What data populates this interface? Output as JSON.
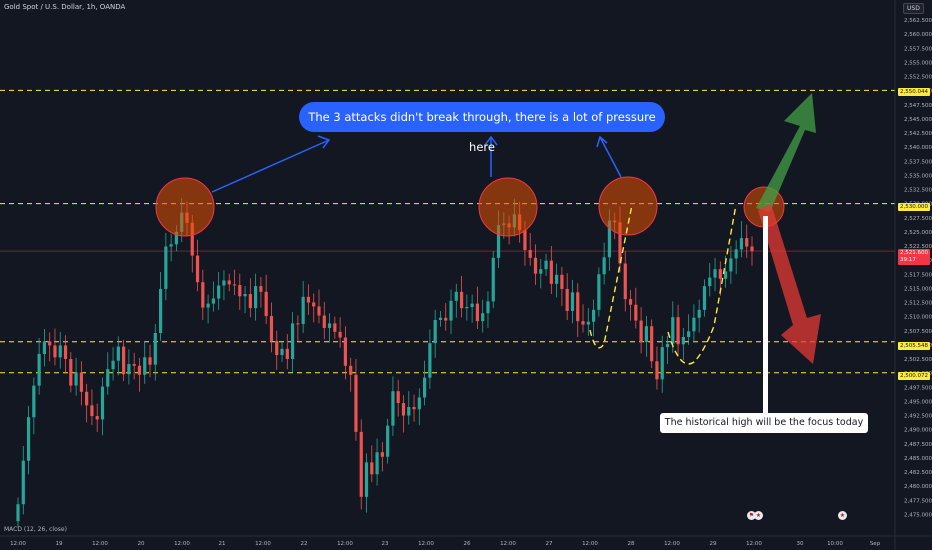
{
  "header": {
    "symbol": "Gold Spot / U.S. Dollar, 1h, OANDA",
    "currency": "USD"
  },
  "indicator": {
    "label": "MACD (12, 26, close)"
  },
  "annotations": {
    "top_note": "The 3 attacks didn't break through, there is a lot of pressure here",
    "bottom_note": "The historical high will be the focus today"
  },
  "price_tags": {
    "level_2550": "2,550.044",
    "level_2530": "2,530.000",
    "current_price": "2,521.600",
    "countdown": "39:17",
    "level_2505": "2,505.548",
    "level_2500": "2,500.072"
  },
  "colors": {
    "background": "#131722",
    "up": "#26a69a",
    "down": "#ef5350",
    "level_line": "#ffeb3b",
    "note": "#2962ff",
    "up_arrow": "#43a047",
    "down_arrow": "#e53935"
  },
  "chart_data": {
    "type": "candlestick",
    "title": "Gold Spot / U.S. Dollar, 1h, OANDA",
    "x_tick_labels": [
      "12:00",
      "19",
      "12:00",
      "20",
      "12:00",
      "21",
      "12:00",
      "22",
      "12:00",
      "23",
      "12:00",
      "26",
      "12:00",
      "27",
      "12:00",
      "28",
      "12:00",
      "29",
      "12:00",
      "30",
      "10:00",
      "Sep"
    ],
    "y_tick_labels": [
      "2,562.500",
      "2,560.000",
      "2,557.500",
      "2,555.000",
      "2,552.500",
      "2,550.000",
      "2,547.500",
      "2,545.000",
      "2,542.500",
      "2,540.000",
      "2,537.500",
      "2,535.000",
      "2,532.500",
      "2,530.000",
      "2,527.500",
      "2,525.000",
      "2,522.500",
      "2,520.000",
      "2,517.500",
      "2,515.000",
      "2,512.500",
      "2,510.000",
      "2,507.500",
      "2,505.000",
      "2,502.500",
      "2,500.000",
      "2,497.500",
      "2,495.000",
      "2,492.500",
      "2,490.000",
      "2,487.500",
      "2,485.000",
      "2,482.500",
      "2,480.000",
      "2,477.500",
      "2,475.000"
    ],
    "ylim": [
      2475,
      2563
    ],
    "horizontal_levels": [
      2550.044,
      2530.0,
      2505.548,
      2500.072
    ],
    "current_price": 2521.6,
    "candle_count": 140,
    "closes": [
      2476.8,
      2484.5,
      2492.2,
      2497.8,
      2503.4,
      2505.6,
      2504.9,
      2502.8,
      2504.9,
      2502.5,
      2497.8,
      2500.1,
      2496.7,
      2494.3,
      2492.4,
      2491.8,
      2497.6,
      2500.7,
      2502.2,
      2504.7,
      2499.8,
      2501.6,
      2501.3,
      2499.7,
      2502.8,
      2501.5,
      2507.1,
      2514.9,
      2522.4,
      2522.8,
      2525.0,
      2528.4,
      2526.6,
      2520.8,
      2516.1,
      2511.6,
      2512.3,
      2513.2,
      2515.5,
      2516.4,
      2515.7,
      2515.6,
      2513.6,
      2514.0,
      2511.5,
      2515.4,
      2514.4,
      2510.1,
      2505.7,
      2503.2,
      2504.3,
      2502.5,
      2508.8,
      2508.7,
      2513.5,
      2512.5,
      2511.8,
      2510.2,
      2508.0,
      2508.8,
      2507.3,
      2506.3,
      2501.3,
      2499.7,
      2489.6,
      2478.1,
      2484.2,
      2482.1,
      2486.0,
      2485.2,
      2490.7,
      2496.8,
      2494.7,
      2492.5,
      2494.0,
      2493.6,
      2495.7,
      2499.2,
      2505.3,
      2509.4,
      2509.8,
      2509.3,
      2512.8,
      2514.4,
      2511.5,
      2511.7,
      2512.3,
      2509.2,
      2510.6,
      2512.7,
      2520.4,
      2526.2,
      2526.5,
      2525.8,
      2528.1,
      2525.3,
      2521.8,
      2520.4,
      2517.6,
      2518.4,
      2519.9,
      2515.8,
      2517.4,
      2514.9,
      2511.0,
      2514.3,
      2509.2,
      2508.6,
      2509.1,
      2511.2,
      2517.5,
      2520.5,
      2527.0,
      2526.7,
      2519.4,
      2513.1,
      2512.1,
      2509.3,
      2505.5,
      2508.3,
      2502.1,
      2498.9,
      2504.6,
      2505.2,
      2509.9,
      2505.1,
      2506.4,
      2507.4,
      2509.8,
      2511.2,
      2515.4,
      2516.9,
      2518.4,
      2516.7,
      2518.0,
      2520.3,
      2521.9,
      2523.9,
      2522.4,
      2521.6
    ]
  }
}
